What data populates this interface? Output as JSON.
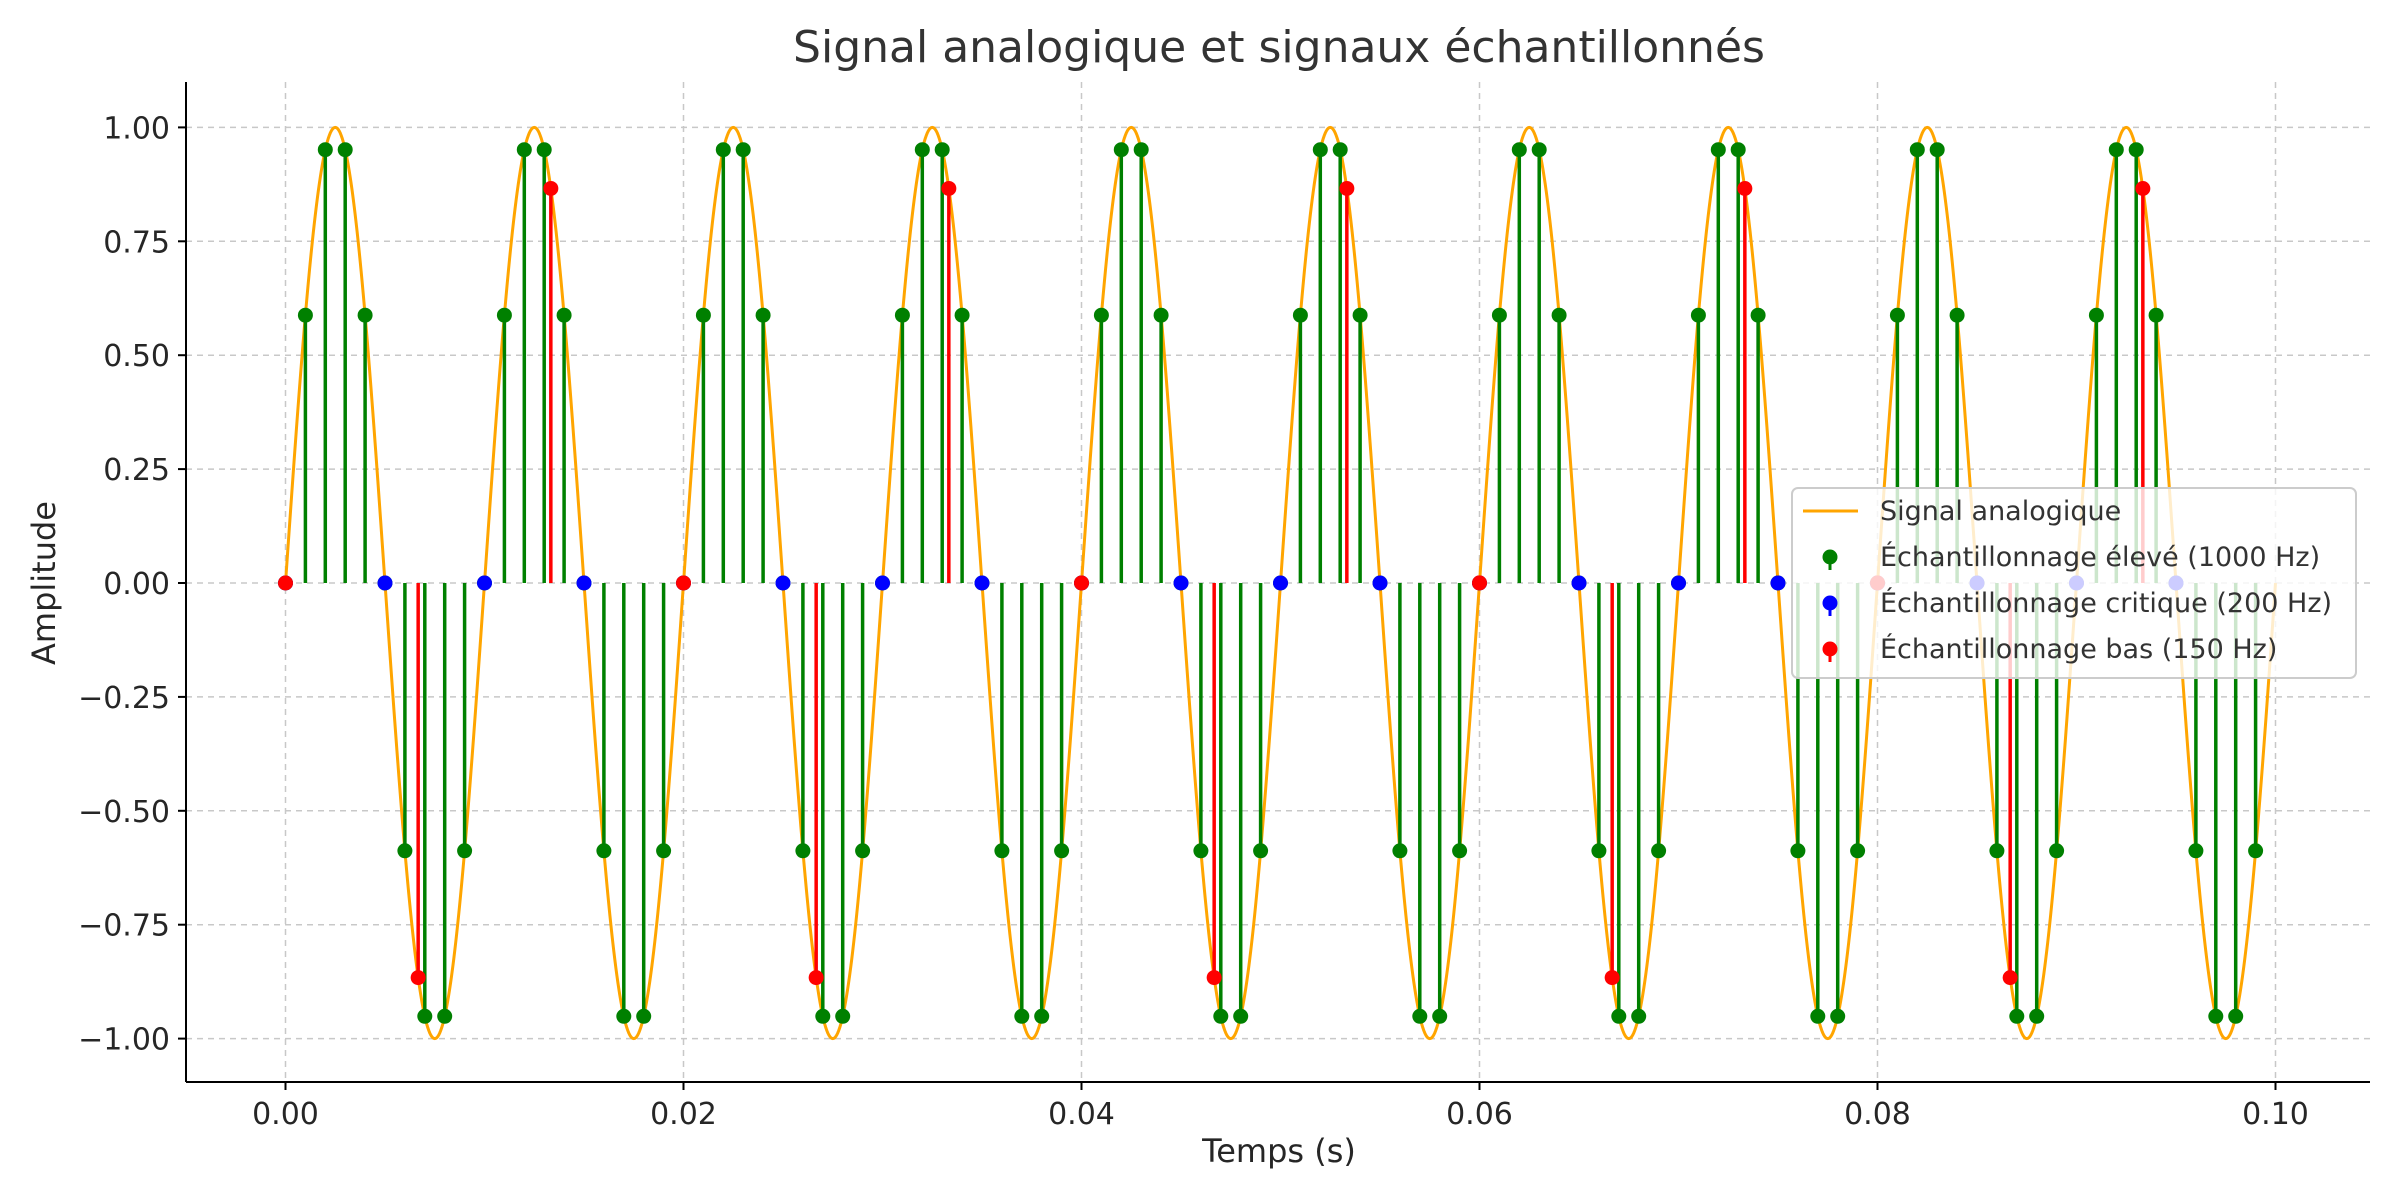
{
  "chart_data": {
    "type": "line",
    "title": "Signal analogique et signaux échantillonnés",
    "xlabel": "Temps (s)",
    "ylabel": "Amplitude",
    "xlim": [
      -0.005,
      0.105
    ],
    "ylim": [
      -1.1,
      1.1
    ],
    "x_ticks": [
      0.0,
      0.02,
      0.04,
      0.06,
      0.08,
      0.1
    ],
    "x_tick_labels": [
      "0.00",
      "0.02",
      "0.04",
      "0.06",
      "0.08",
      "0.10"
    ],
    "y_ticks": [
      1.0,
      0.75,
      0.5,
      0.25,
      0.0,
      -0.25,
      -0.5,
      -0.75,
      -1.0
    ],
    "y_tick_labels": [
      "1.00",
      "0.75",
      "0.50",
      "0.25",
      "0.00",
      "−0.25",
      "−0.50",
      "−0.75",
      "−1.00"
    ],
    "grid": true,
    "legend_position": "right",
    "signal": {
      "function": "sin(2*pi*100*t)",
      "frequency_hz": 100,
      "amplitude": 1.0,
      "t_start": 0.0,
      "t_end": 0.1
    },
    "series": [
      {
        "name": "Signal analogique",
        "kind": "line",
        "color": "#FFA500",
        "x_range": [
          0.0,
          0.1
        ]
      },
      {
        "name": "Échantillonnage élevé (1000 Hz)",
        "kind": "stem",
        "color": "#008000",
        "sample_rate_hz": 1000,
        "x_range": [
          0.0,
          0.099
        ],
        "sample_period": 0.001
      },
      {
        "name": "Échantillonnage critique (200 Hz)",
        "kind": "stem",
        "color": "#0000FF",
        "sample_rate_hz": 200,
        "x_range": [
          0.0,
          0.095
        ],
        "sample_period": 0.005
      },
      {
        "name": "Échantillonnage bas (150 Hz)",
        "kind": "stem",
        "color": "#FF0000",
        "sample_rate_hz": 150,
        "x_range": [
          0.0,
          0.0933
        ],
        "sample_period": 0.0066667
      }
    ]
  }
}
